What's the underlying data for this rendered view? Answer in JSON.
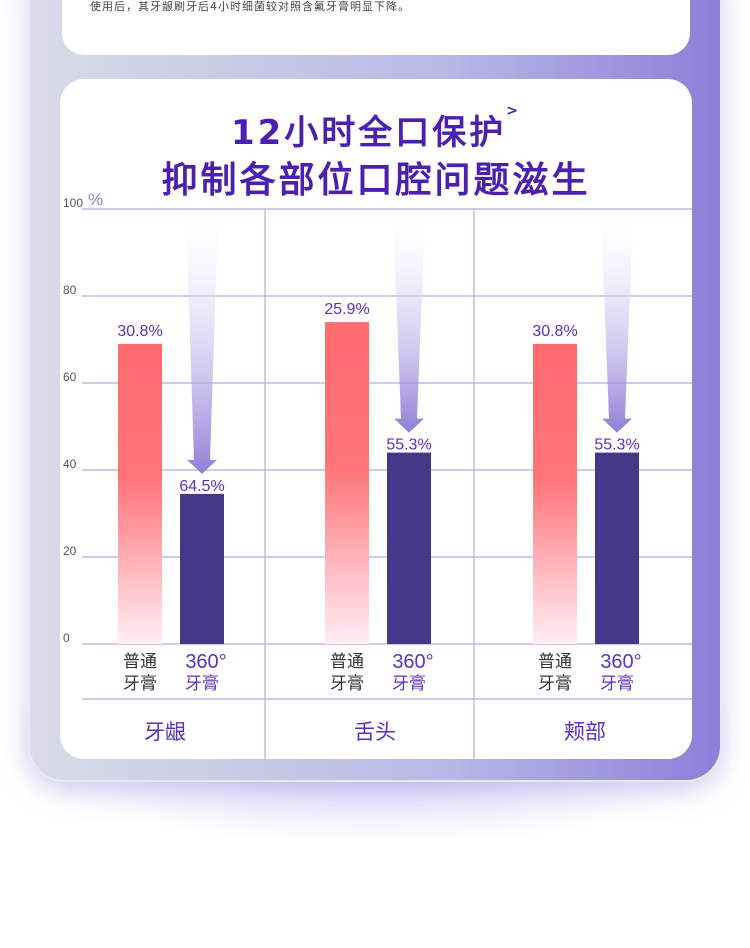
{
  "top_card": {
    "note": "使用后，其牙龈刷牙后4小时细菌较对照含氟牙膏明显下降。"
  },
  "header": {
    "title_line1": "12小时全口保护",
    "title_sup": ">",
    "title_line2": "抑制各部位口腔问题滋生"
  },
  "legend_labels": {
    "ordinary_line1": "普通",
    "ordinary_line2": "牙膏",
    "brand_line1": "360°",
    "brand_line2": "牙膏"
  },
  "colors": {
    "title": "#4b1fb0",
    "ordinary_bar_top": "#ff6b6e",
    "ordinary_bar_bottom": "#ffeef3",
    "brand_bar": "#443787",
    "grid": "#b9a9e0",
    "arrow": "#8a78d6",
    "label": "#5b2fc0"
  },
  "chart_data": {
    "type": "bar",
    "unit_label": "%",
    "ylim": [
      0,
      100
    ],
    "yticks": [
      "0",
      "20",
      "40",
      "60",
      "80",
      "100"
    ],
    "grid": true,
    "categories": [
      "牙龈",
      "舌头",
      "颊部"
    ],
    "series": [
      {
        "key": "ordinary",
        "values": [
          69,
          74,
          69
        ],
        "labels": [
          "30.8%",
          "25.9%",
          "30.8%"
        ]
      },
      {
        "key": "brand",
        "values": [
          34.5,
          44,
          44
        ],
        "labels": [
          "64.5%",
          "55.3%",
          "55.3%"
        ]
      }
    ]
  }
}
